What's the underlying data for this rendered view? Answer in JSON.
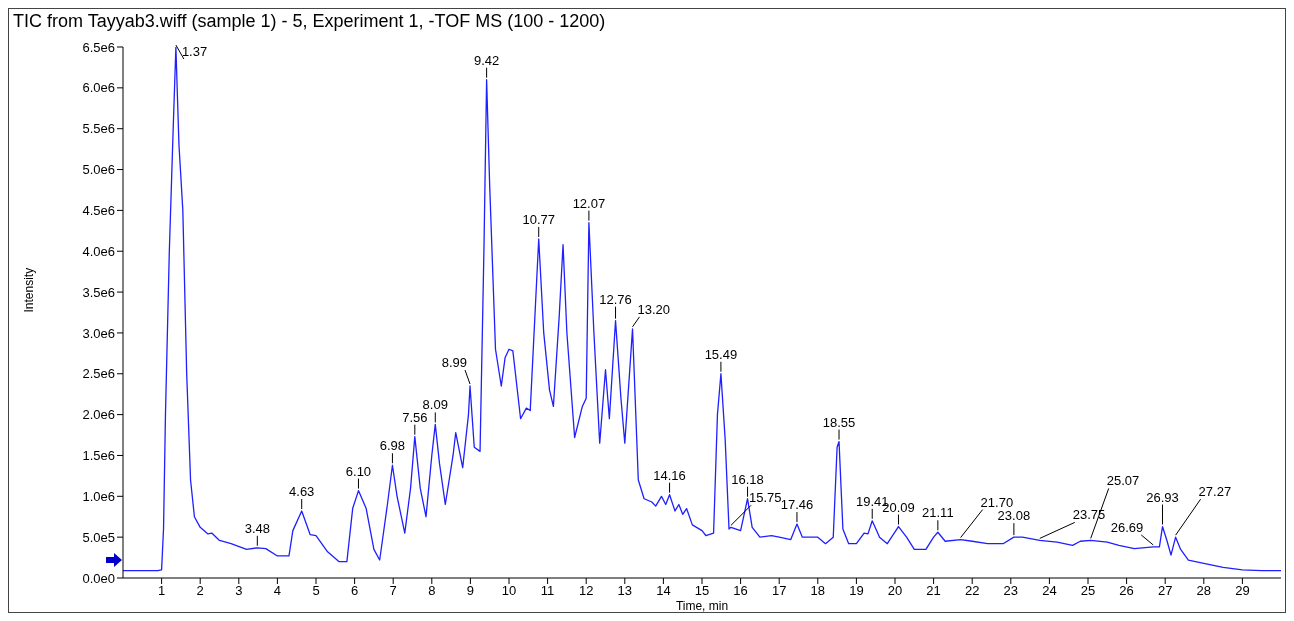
{
  "chart_data": {
    "type": "line",
    "title": "TIC from Tayyab3.wiff (sample 1) - 5, Experiment 1, -TOF MS (100 - 1200)",
    "xlabel": "Time, min",
    "ylabel": "Intensity",
    "x": [
      0,
      0.9,
      1.0,
      1.05,
      1.1,
      1.2,
      1.3,
      1.37,
      1.45,
      1.55,
      1.65,
      1.75,
      1.85,
      2.0,
      2.2,
      2.3,
      2.5,
      2.8,
      3.2,
      3.48,
      3.7,
      4.0,
      4.3,
      4.4,
      4.63,
      4.85,
      5.0,
      5.3,
      5.6,
      5.8,
      5.95,
      6.1,
      6.3,
      6.5,
      6.65,
      6.85,
      6.98,
      7.1,
      7.3,
      7.45,
      7.56,
      7.7,
      7.85,
      8.0,
      8.09,
      8.2,
      8.35,
      8.55,
      8.62,
      8.8,
      8.95,
      8.99,
      9.1,
      9.25,
      9.35,
      9.42,
      9.5,
      9.65,
      9.8,
      9.9,
      10.0,
      10.1,
      10.3,
      10.45,
      10.55,
      10.77,
      10.9,
      11.05,
      11.15,
      11.3,
      11.4,
      11.5,
      11.7,
      11.9,
      12.0,
      12.07,
      12.2,
      12.35,
      12.5,
      12.6,
      12.76,
      12.9,
      13.0,
      13.2,
      13.35,
      13.5,
      13.7,
      13.8,
      13.95,
      14.06,
      14.16,
      14.3,
      14.4,
      14.5,
      14.6,
      14.75,
      15.0,
      15.1,
      15.3,
      15.4,
      15.49,
      15.6,
      15.7,
      15.75,
      16.0,
      16.18,
      16.3,
      16.5,
      16.8,
      17.0,
      17.3,
      17.46,
      17.6,
      18.0,
      18.2,
      18.4,
      18.5,
      18.55,
      18.65,
      18.8,
      19.0,
      19.2,
      19.3,
      19.41,
      19.6,
      19.8,
      20.09,
      20.3,
      20.5,
      20.8,
      21.0,
      21.11,
      21.3,
      21.7,
      22.0,
      22.4,
      22.8,
      23.08,
      23.3,
      23.75,
      24.2,
      24.6,
      24.8,
      25.07,
      25.5,
      25.8,
      26.2,
      26.69,
      26.85,
      26.93,
      27.05,
      27.15,
      27.27,
      27.4,
      27.6,
      28.0,
      28.5,
      29.0,
      29.5,
      30.0
    ],
    "series": [
      {
        "color": "#1f1fff",
        "values": [
          90000,
          90000,
          100000,
          600000,
          2000000,
          4000000,
          5500000,
          6500000,
          5300000,
          4500000,
          2500000,
          1200000,
          750000,
          620000,
          540000,
          550000,
          460000,
          420000,
          350000,
          370000,
          360000,
          270000,
          270000,
          580000,
          820000,
          530000,
          520000,
          320000,
          200000,
          200000,
          850000,
          1070000,
          850000,
          350000,
          220000,
          900000,
          1380000,
          1000000,
          550000,
          1100000,
          1730000,
          1100000,
          750000,
          1500000,
          1880000,
          1400000,
          900000,
          1500000,
          1780000,
          1350000,
          2000000,
          2350000,
          1600000,
          1550000,
          4000000,
          6100000,
          4800000,
          2800000,
          2350000,
          2700000,
          2800000,
          2780000,
          1950000,
          2080000,
          2050000,
          4150000,
          3000000,
          2300000,
          2100000,
          3200000,
          4080000,
          3000000,
          1720000,
          2100000,
          2200000,
          4350000,
          3000000,
          1650000,
          2550000,
          1950000,
          3150000,
          2200000,
          1650000,
          3050000,
          1200000,
          970000,
          930000,
          880000,
          1000000,
          900000,
          1020000,
          820000,
          900000,
          780000,
          850000,
          650000,
          580000,
          520000,
          550000,
          2000000,
          2500000,
          1700000,
          600000,
          620000,
          580000,
          970000,
          620000,
          500000,
          520000,
          500000,
          470000,
          660000,
          500000,
          500000,
          420000,
          500000,
          1600000,
          1670000,
          600000,
          420000,
          420000,
          550000,
          540000,
          700000,
          500000,
          420000,
          630000,
          500000,
          350000,
          350000,
          500000,
          560000,
          450000,
          470000,
          450000,
          420000,
          420000,
          500000,
          500000,
          460000,
          440000,
          400000,
          450000,
          460000,
          440000,
          400000,
          360000,
          380000,
          380000,
          630000,
          450000,
          280000,
          500000,
          350000,
          220000,
          180000,
          130000,
          100000,
          90000,
          90000
        ]
      }
    ],
    "xlim": [
      0,
      30
    ],
    "xticks": [
      1,
      2,
      3,
      4,
      5,
      6,
      7,
      8,
      9,
      10,
      11,
      12,
      13,
      14,
      15,
      16,
      17,
      18,
      19,
      20,
      21,
      22,
      23,
      24,
      25,
      26,
      27,
      28,
      29
    ],
    "ylim": [
      0,
      6500000
    ],
    "yticks": [
      {
        "value": 0,
        "label": "0.0e0"
      },
      {
        "value": 500000,
        "label": "5.0e5"
      },
      {
        "value": 1000000,
        "label": "1.0e6"
      },
      {
        "value": 1500000,
        "label": "1.5e6"
      },
      {
        "value": 2000000,
        "label": "2.0e6"
      },
      {
        "value": 2500000,
        "label": "2.5e6"
      },
      {
        "value": 3000000,
        "label": "3.0e6"
      },
      {
        "value": 3500000,
        "label": "3.5e6"
      },
      {
        "value": 4000000,
        "label": "4.0e6"
      },
      {
        "value": 4500000,
        "label": "4.5e6"
      },
      {
        "value": 5000000,
        "label": "5.0e6"
      },
      {
        "value": 5500000,
        "label": "5.5e6"
      },
      {
        "value": 6000000,
        "label": "6.0e6"
      },
      {
        "value": 6500000,
        "label": "6.5e6"
      }
    ],
    "grid": false,
    "legend": false,
    "marker": "none",
    "line_style": "solid",
    "annotations": [
      {
        "text": "1.37",
        "x": 1.37,
        "y": 6500000
      },
      {
        "text": "3.48",
        "x": 3.48,
        "y": 370000
      },
      {
        "text": "4.63",
        "x": 4.63,
        "y": 820000
      },
      {
        "text": "6.10",
        "x": 6.1,
        "y": 1070000
      },
      {
        "text": "6.98",
        "x": 6.98,
        "y": 1380000
      },
      {
        "text": "7.56",
        "x": 7.56,
        "y": 1730000
      },
      {
        "text": "8.09",
        "x": 8.09,
        "y": 1880000
      },
      {
        "text": "8.99",
        "x": 8.99,
        "y": 2350000
      },
      {
        "text": "9.42",
        "x": 9.42,
        "y": 6100000
      },
      {
        "text": "10.77",
        "x": 10.77,
        "y": 4150000
      },
      {
        "text": "12.07",
        "x": 12.07,
        "y": 4350000
      },
      {
        "text": "12.76",
        "x": 12.76,
        "y": 3150000
      },
      {
        "text": "13.20",
        "x": 13.2,
        "y": 3050000
      },
      {
        "text": "14.16",
        "x": 14.16,
        "y": 1020000
      },
      {
        "text": "15.49",
        "x": 15.49,
        "y": 2500000
      },
      {
        "text": "15.75",
        "x": 15.75,
        "y": 620000
      },
      {
        "text": "16.18",
        "x": 16.18,
        "y": 970000
      },
      {
        "text": "17.46",
        "x": 17.46,
        "y": 660000
      },
      {
        "text": "18.55",
        "x": 18.55,
        "y": 1670000
      },
      {
        "text": "19.41",
        "x": 19.41,
        "y": 700000
      },
      {
        "text": "20.09",
        "x": 20.09,
        "y": 630000
      },
      {
        "text": "21.11",
        "x": 21.11,
        "y": 560000
      },
      {
        "text": "21.70",
        "x": 21.7,
        "y": 470000
      },
      {
        "text": "23.08",
        "x": 23.08,
        "y": 500000
      },
      {
        "text": "23.75",
        "x": 23.75,
        "y": 460000
      },
      {
        "text": "25.07",
        "x": 25.07,
        "y": 460000
      },
      {
        "text": "26.69",
        "x": 26.69,
        "y": 380000
      },
      {
        "text": "26.93",
        "x": 26.93,
        "y": 630000
      },
      {
        "text": "27.27",
        "x": 27.27,
        "y": 500000
      }
    ]
  }
}
